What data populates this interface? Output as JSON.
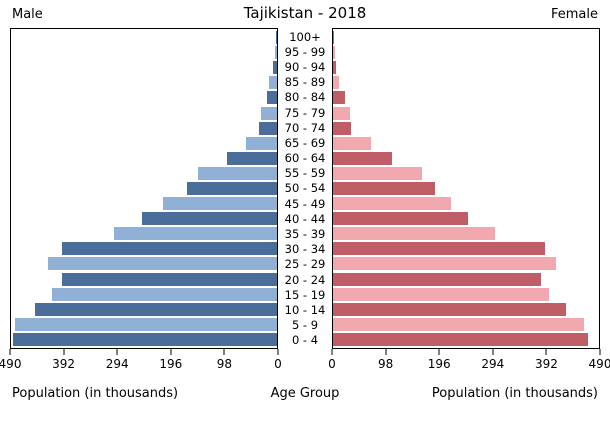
{
  "header": {
    "male_label": "Male",
    "title": "Tajikistan - 2018",
    "female_label": "Female"
  },
  "footer": {
    "left_axis_title": "Population (in thousands)",
    "center_axis_title": "Age Group",
    "right_axis_title": "Population (in thousands)"
  },
  "colors": {
    "male_dark": "#4a6d99",
    "male_light": "#90b0d5",
    "female_dark": "#c05e68",
    "female_light": "#f2a8af",
    "axis": "#000000",
    "background": "#ffffff"
  },
  "chart_data": {
    "type": "bar",
    "subtype": "population-pyramid",
    "title": "Tajikistan - 2018",
    "unit": "thousands",
    "xlim": [
      0,
      490
    ],
    "x_ticks_male": [
      490,
      392,
      294,
      196,
      98,
      0
    ],
    "x_ticks_female": [
      0,
      98,
      196,
      294,
      392,
      490
    ],
    "age_groups": [
      "100+",
      "95 - 99",
      "90 - 94",
      "85 - 89",
      "80 - 84",
      "75 - 79",
      "70 - 74",
      "65 - 69",
      "60 - 64",
      "55 - 59",
      "50 - 54",
      "45 - 49",
      "40 - 44",
      "35 - 39",
      "30 - 34",
      "25 - 29",
      "20 - 24",
      "15 - 19",
      "10 - 14",
      "5 - 9",
      "0 - 4"
    ],
    "series": [
      {
        "name": "Male",
        "side": "left",
        "values": [
          2,
          4,
          8,
          14,
          18,
          30,
          33,
          58,
          93,
          146,
          166,
          210,
          248,
          301,
          397,
          422,
          396,
          414,
          446,
          482,
          487
        ]
      },
      {
        "name": "Female",
        "side": "right",
        "values": [
          2,
          4,
          6,
          11,
          23,
          32,
          34,
          70,
          109,
          164,
          188,
          218,
          249,
          299,
          391,
          411,
          383,
          398,
          430,
          462,
          470
        ]
      }
    ]
  }
}
